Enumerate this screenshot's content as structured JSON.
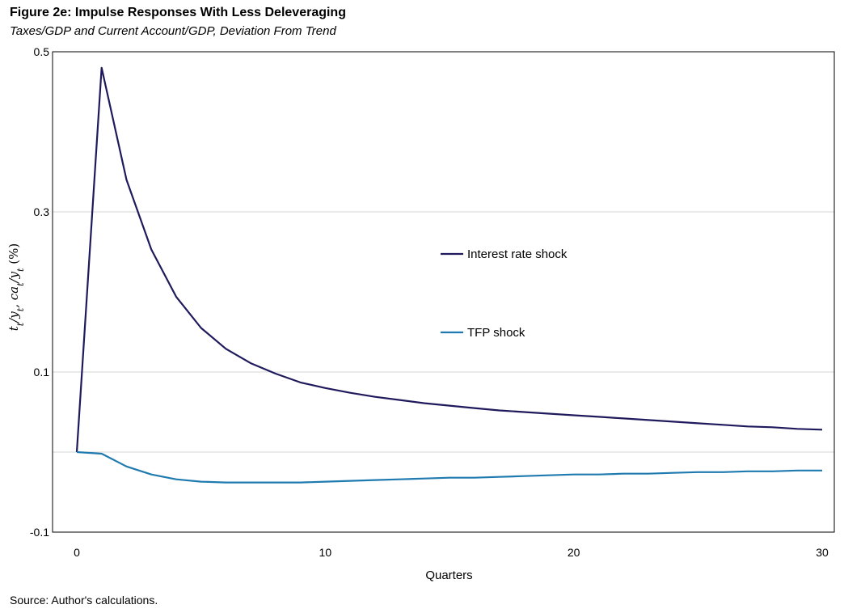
{
  "figure": {
    "title": "Figure 2e: Impulse Responses With Less Deleveraging",
    "subtitle": "Taxes/GDP and Current Account/GDP, Deviation From Trend",
    "source": "Source: Author's calculations."
  },
  "chart_data": {
    "type": "line",
    "xlabel": "Quarters",
    "ylabel_parts": {
      "t": "t",
      "sub1": "t",
      "slash1": "/",
      "y1": "y",
      "sub2": "t",
      "comma": ", ",
      "ca": "ca",
      "sub3": "t",
      "slash2": "/",
      "y2": "y",
      "sub4": "t",
      "unit": " (%)"
    },
    "xlim": [
      0,
      30
    ],
    "ylim": [
      -0.1,
      0.5
    ],
    "x_ticks": [
      0,
      10,
      20,
      30
    ],
    "y_ticks": [
      0.5,
      0.3,
      0.1,
      -0.1
    ],
    "grid_y": [
      0.3,
      0.1,
      0.0
    ],
    "legend_placement": "center-right",
    "x": [
      0,
      1,
      2,
      3,
      4,
      5,
      6,
      7,
      8,
      9,
      10,
      11,
      12,
      13,
      14,
      15,
      16,
      17,
      18,
      19,
      20,
      21,
      22,
      23,
      24,
      25,
      26,
      27,
      28,
      29,
      30
    ],
    "series": [
      {
        "name": "Interest rate shock",
        "color": "#1f1a5c",
        "values": [
          0.0,
          0.48,
          0.34,
          0.253,
          0.194,
          0.155,
          0.129,
          0.111,
          0.098,
          0.087,
          0.08,
          0.074,
          0.069,
          0.065,
          0.061,
          0.058,
          0.055,
          0.052,
          0.05,
          0.048,
          0.046,
          0.044,
          0.042,
          0.04,
          0.038,
          0.036,
          0.034,
          0.032,
          0.031,
          0.029,
          0.028
        ]
      },
      {
        "name": "TFP shock",
        "color": "#1f7ab0",
        "values": [
          0.0,
          -0.002,
          -0.018,
          -0.028,
          -0.034,
          -0.037,
          -0.038,
          -0.038,
          -0.038,
          -0.038,
          -0.037,
          -0.036,
          -0.035,
          -0.034,
          -0.033,
          -0.032,
          -0.032,
          -0.031,
          -0.03,
          -0.029,
          -0.028,
          -0.028,
          -0.027,
          -0.027,
          -0.026,
          -0.025,
          -0.025,
          -0.024,
          -0.024,
          -0.023,
          -0.023
        ]
      }
    ]
  }
}
